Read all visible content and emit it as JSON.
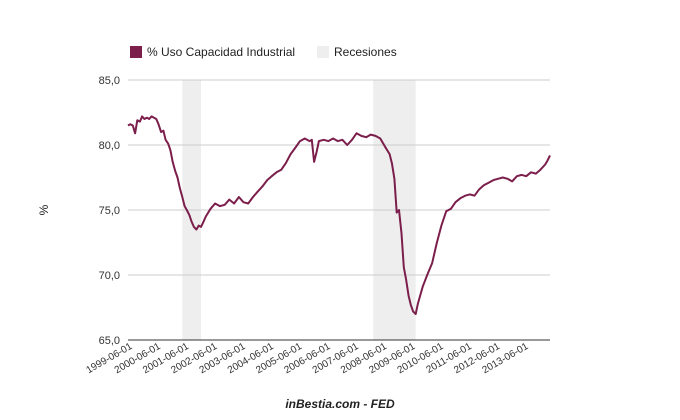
{
  "chart_data": {
    "type": "line",
    "ylabel": "%",
    "xlabel": "",
    "ylim": [
      65,
      85
    ],
    "yticks": [
      "85,0",
      "80,0",
      "75,0",
      "70,0",
      "65,0"
    ],
    "ytick_values": [
      85,
      80,
      75,
      70,
      65
    ],
    "xlim": [
      1999.25,
      2014.17
    ],
    "xtick_labels": [
      "1999-06-01",
      "2000-06-01",
      "2001-06-01",
      "2002-06-01",
      "2003-06-01",
      "2004-06-01",
      "2005-06-01",
      "2006-06-01",
      "2007-06-01",
      "2008-06-01",
      "2009-06-01",
      "2010-06-01",
      "2011-06-01",
      "2012-06-01",
      "2013-06-01"
    ],
    "xtick_values": [
      1999.42,
      2000.42,
      2001.42,
      2002.42,
      2003.42,
      2004.42,
      2005.42,
      2006.42,
      2007.42,
      2008.42,
      2009.42,
      2010.42,
      2011.42,
      2012.42,
      2013.42
    ],
    "legend": [
      {
        "label": "% Uso Capacidad Industrial",
        "color": "#7b1e4b",
        "kind": "series"
      },
      {
        "label": "Recesiones",
        "color": "#eeeeee",
        "kind": "band"
      }
    ],
    "recessions": [
      {
        "start": 2001.17,
        "end": 2001.83
      },
      {
        "start": 2007.92,
        "end": 2009.42
      }
    ],
    "series": [
      {
        "name": "% Uso Capacidad Industrial",
        "color": "#7b1e4b",
        "x": [
          1999.25,
          1999.33,
          1999.42,
          1999.5,
          1999.58,
          1999.67,
          1999.75,
          1999.83,
          1999.92,
          2000.0,
          2000.08,
          2000.17,
          2000.25,
          2000.33,
          2000.42,
          2000.5,
          2000.58,
          2000.67,
          2000.75,
          2000.83,
          2000.92,
          2001.0,
          2001.08,
          2001.17,
          2001.25,
          2001.33,
          2001.42,
          2001.5,
          2001.58,
          2001.67,
          2001.75,
          2001.83,
          2001.92,
          2002.0,
          2002.17,
          2002.33,
          2002.5,
          2002.67,
          2002.83,
          2003.0,
          2003.17,
          2003.33,
          2003.5,
          2003.67,
          2003.83,
          2004.0,
          2004.17,
          2004.33,
          2004.5,
          2004.67,
          2004.83,
          2005.0,
          2005.17,
          2005.33,
          2005.5,
          2005.67,
          2005.75,
          2005.83,
          2005.92,
          2006.0,
          2006.17,
          2006.33,
          2006.5,
          2006.67,
          2006.83,
          2007.0,
          2007.17,
          2007.33,
          2007.5,
          2007.67,
          2007.83,
          2008.0,
          2008.17,
          2008.33,
          2008.5,
          2008.58,
          2008.67,
          2008.75,
          2008.83,
          2008.92,
          2009.0,
          2009.08,
          2009.17,
          2009.25,
          2009.33,
          2009.42,
          2009.5,
          2009.67,
          2009.83,
          2010.0,
          2010.17,
          2010.33,
          2010.5,
          2010.67,
          2010.83,
          2011.0,
          2011.17,
          2011.33,
          2011.5,
          2011.67,
          2011.83,
          2012.0,
          2012.17,
          2012.33,
          2012.5,
          2012.67,
          2012.83,
          2013.0,
          2013.17,
          2013.33,
          2013.5,
          2013.67,
          2013.83,
          2014.0,
          2014.08,
          2014.17
        ],
        "values": [
          81.5,
          81.6,
          81.5,
          80.9,
          81.9,
          81.8,
          82.2,
          82.0,
          82.1,
          82.0,
          82.2,
          82.1,
          82.0,
          81.6,
          81.0,
          81.1,
          80.4,
          80.1,
          79.6,
          78.7,
          78.0,
          77.5,
          76.7,
          76.0,
          75.3,
          75.0,
          74.6,
          74.1,
          73.7,
          73.5,
          73.8,
          73.7,
          74.1,
          74.5,
          75.1,
          75.5,
          75.3,
          75.4,
          75.8,
          75.5,
          76.0,
          75.6,
          75.5,
          76.0,
          76.4,
          76.8,
          77.3,
          77.6,
          77.9,
          78.1,
          78.6,
          79.3,
          79.8,
          80.3,
          80.5,
          80.3,
          80.4,
          78.7,
          79.5,
          80.3,
          80.4,
          80.3,
          80.5,
          80.3,
          80.4,
          80.0,
          80.4,
          80.9,
          80.7,
          80.6,
          80.8,
          80.7,
          80.5,
          79.9,
          79.3,
          78.6,
          77.4,
          74.8,
          75.0,
          73.2,
          70.6,
          69.7,
          68.4,
          67.7,
          67.2,
          67.0,
          67.8,
          69.1,
          70.0,
          70.9,
          72.5,
          73.8,
          74.9,
          75.1,
          75.6,
          75.9,
          76.1,
          76.2,
          76.1,
          76.6,
          76.9,
          77.1,
          77.3,
          77.4,
          77.5,
          77.4,
          77.2,
          77.6,
          77.7,
          77.6,
          77.9,
          77.8,
          78.1,
          78.5,
          78.8,
          79.2
        ]
      }
    ],
    "credit": "inBestia.com - FED"
  }
}
